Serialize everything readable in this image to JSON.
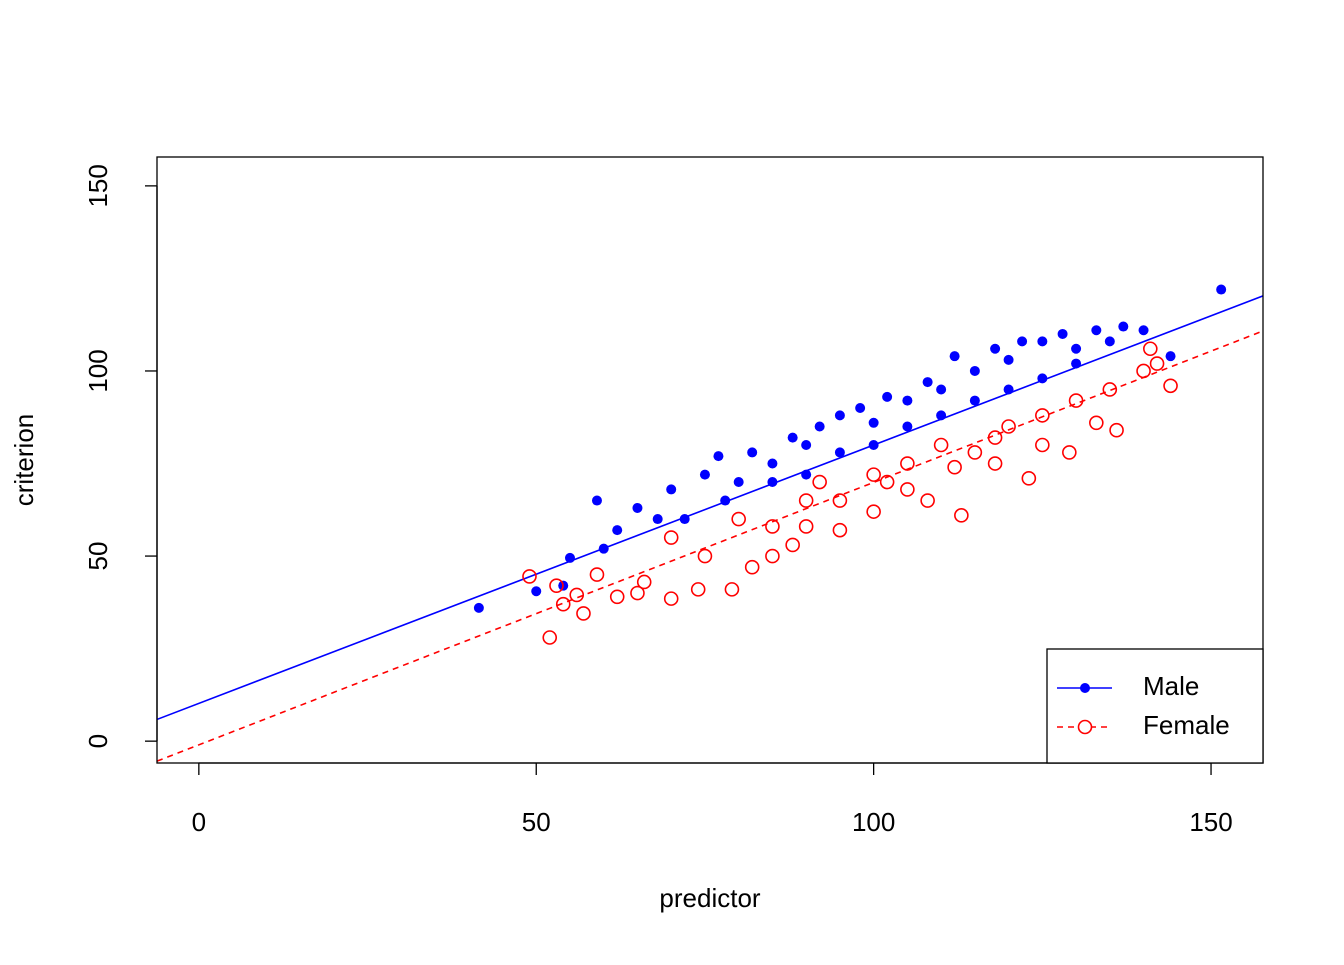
{
  "chart_data": {
    "type": "scatter",
    "x_label": "predictor",
    "y_label": "criterion",
    "xlim": [
      -6.2,
      157.7
    ],
    "ylim": [
      -5.9,
      157.8
    ],
    "xticks": [
      0,
      50,
      100,
      150
    ],
    "yticks": [
      0,
      50,
      100,
      150
    ],
    "legend": "bottomright",
    "series": [
      {
        "name": "Male",
        "color": "#0000ff",
        "marker": "filled",
        "line_style": "solid",
        "intercept": 10.2,
        "slope": 0.698,
        "x": [
          41.5,
          50,
          54,
          55,
          59,
          60,
          62,
          65,
          68,
          70,
          72,
          75,
          77,
          80,
          82,
          85,
          88,
          90,
          92,
          95,
          98,
          100,
          102,
          105,
          108,
          110,
          112,
          115,
          118,
          120,
          122,
          125,
          128,
          130,
          133,
          135,
          137,
          140,
          144,
          151.5,
          78,
          85,
          95,
          105,
          115,
          125,
          90,
          100,
          110,
          120,
          130
        ],
        "values": [
          36,
          40.5,
          42,
          49.5,
          65,
          52,
          57,
          63,
          60,
          68,
          60,
          72,
          77,
          70,
          78,
          75,
          82,
          80,
          85,
          88,
          90,
          86,
          93,
          92,
          97,
          95,
          104,
          100,
          106,
          103,
          108,
          108,
          110,
          106,
          111,
          108,
          112,
          111,
          104,
          122,
          65,
          70,
          78,
          85,
          92,
          98,
          72,
          80,
          88,
          95,
          102
        ]
      },
      {
        "name": "Female",
        "color": "#ff0000",
        "marker": "open",
        "line_style": "dashed",
        "intercept": -1.0,
        "slope": 0.709,
        "x": [
          49,
          52,
          53,
          54,
          56,
          57,
          59,
          62,
          65,
          66,
          70,
          74,
          79,
          82,
          85,
          88,
          90,
          95,
          100,
          105,
          108,
          112,
          113,
          118,
          123,
          125,
          129,
          133,
          136,
          140,
          142,
          144,
          141,
          80,
          90,
          100,
          110,
          120,
          130,
          85,
          95,
          105,
          115,
          125,
          135,
          75,
          70,
          92,
          102,
          118
        ],
        "values": [
          44.5,
          28,
          42,
          37,
          39.5,
          34.5,
          45,
          39,
          40,
          43,
          38.5,
          41,
          41,
          47,
          50,
          53,
          58,
          57,
          62,
          68,
          65,
          74,
          61,
          75,
          71,
          80,
          78,
          86,
          84,
          100,
          102,
          96,
          106,
          60,
          65,
          72,
          80,
          85,
          92,
          58,
          65,
          75,
          78,
          88,
          95,
          50,
          55,
          70,
          70,
          82
        ]
      }
    ]
  }
}
